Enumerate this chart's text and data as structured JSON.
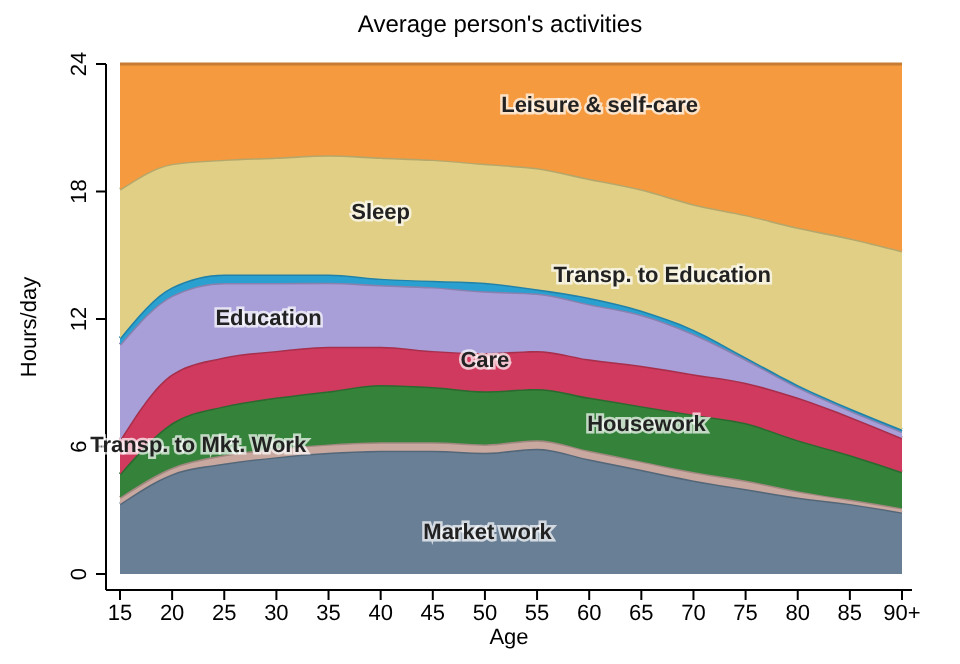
{
  "chart_data": {
    "type": "area",
    "title": "Average person's activities",
    "xlabel": "Age",
    "ylabel": "Hours/day",
    "stacked": true,
    "categories": [
      "15",
      "20",
      "25",
      "30",
      "35",
      "40",
      "45",
      "50",
      "55",
      "60",
      "65",
      "70",
      "75",
      "80",
      "85",
      "90+"
    ],
    "ylim": [
      0,
      24
    ],
    "yticks": [
      0,
      6,
      12,
      18,
      24
    ],
    "grid": false,
    "series": [
      {
        "name": "Market work",
        "color": "#687f96",
        "values": [
          3.3,
          4.7,
          5.2,
          5.5,
          5.7,
          5.8,
          5.8,
          5.7,
          5.9,
          5.4,
          4.9,
          4.4,
          4.0,
          3.6,
          3.3,
          2.9
        ]
      },
      {
        "name": "Transp. to Mkt. Work",
        "color": "#c9a8a0",
        "values": [
          0.3,
          0.3,
          0.4,
          0.4,
          0.4,
          0.4,
          0.4,
          0.4,
          0.4,
          0.4,
          0.4,
          0.4,
          0.4,
          0.3,
          0.2,
          0.2
        ]
      },
      {
        "name": "Housework",
        "color": "#35833a",
        "values": [
          1.1,
          2.1,
          2.3,
          2.4,
          2.5,
          2.7,
          2.6,
          2.5,
          2.4,
          2.5,
          2.6,
          2.7,
          2.7,
          2.4,
          2.1,
          1.7
        ]
      },
      {
        "name": "Care",
        "color": "#cf3a5e",
        "values": [
          1.6,
          2.3,
          2.3,
          2.2,
          2.1,
          1.8,
          1.7,
          1.8,
          1.8,
          1.8,
          1.9,
          1.9,
          1.9,
          2.0,
          1.8,
          1.6
        ]
      },
      {
        "name": "Education",
        "color": "#a89ed8",
        "values": [
          4.5,
          3.7,
          3.5,
          3.2,
          3.0,
          2.9,
          3.0,
          2.9,
          2.7,
          2.6,
          2.4,
          1.9,
          1.1,
          0.5,
          0.3,
          0.3
        ]
      },
      {
        "name": "Transp. to Education",
        "color": "#29a0d0",
        "values": [
          0.3,
          0.4,
          0.4,
          0.4,
          0.4,
          0.3,
          0.3,
          0.4,
          0.2,
          0.3,
          0.2,
          0.2,
          0.1,
          0.1,
          0.1,
          0.1
        ]
      },
      {
        "name": "Sleep",
        "color": "#e0cf85",
        "values": [
          7.0,
          5.8,
          5.4,
          5.5,
          5.6,
          5.7,
          5.7,
          5.6,
          5.7,
          5.6,
          5.7,
          5.9,
          6.7,
          7.4,
          8.0,
          8.4
        ]
      },
      {
        "name": "Leisure & self-care",
        "color": "#f59a3e",
        "values": [
          5.9,
          4.7,
          4.5,
          4.4,
          4.3,
          4.4,
          4.5,
          4.7,
          4.9,
          5.4,
          5.9,
          6.6,
          7.1,
          7.7,
          8.2,
          8.8
        ]
      }
    ]
  }
}
